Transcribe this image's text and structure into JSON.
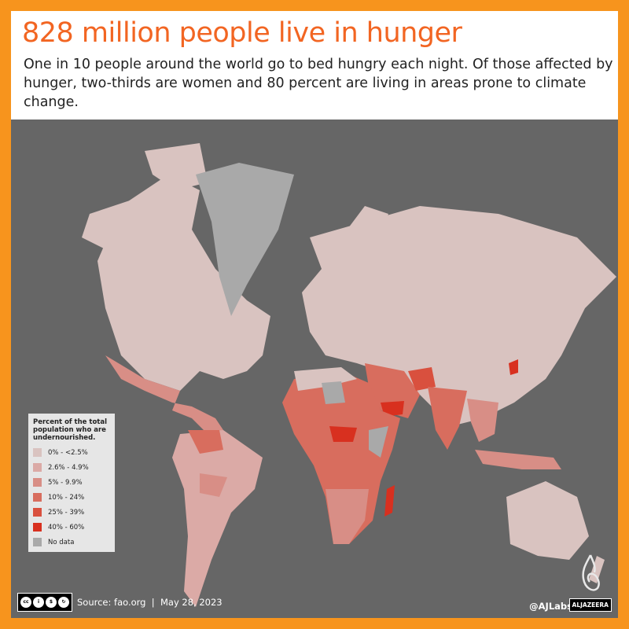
{
  "header": {
    "title": "828 million people live in hunger",
    "subtitle": "One in 10 people around the world go to bed hungry each night. Of those affected by hunger, two-thirds are women and 80 percent are living in areas prone to climate change."
  },
  "legend": {
    "title": "Percent of the total population who are undernourished.",
    "items": [
      {
        "label": "0% - <2.5%",
        "color": "#d9c3c0"
      },
      {
        "label": "2.6% - 4.9%",
        "color": "#dbaaa6"
      },
      {
        "label": "5% - 9.9%",
        "color": "#d88e86"
      },
      {
        "label": "10% - 24%",
        "color": "#d86d5e"
      },
      {
        "label": "25% - 39%",
        "color": "#d9503e"
      },
      {
        "label": "40% - 60%",
        "color": "#d8301f"
      },
      {
        "label": "No data",
        "color": "#a9a9a9"
      }
    ]
  },
  "footer": {
    "license_icons": [
      "cc",
      "by",
      "nc",
      "sa"
    ],
    "source": "Source: fao.org  |  May 28, 2023",
    "handle": "@AJLabs",
    "brand": "ALJAZEERA"
  },
  "colors": {
    "border": "#f7941d",
    "title": "#f26522",
    "ocean": "#666666"
  }
}
